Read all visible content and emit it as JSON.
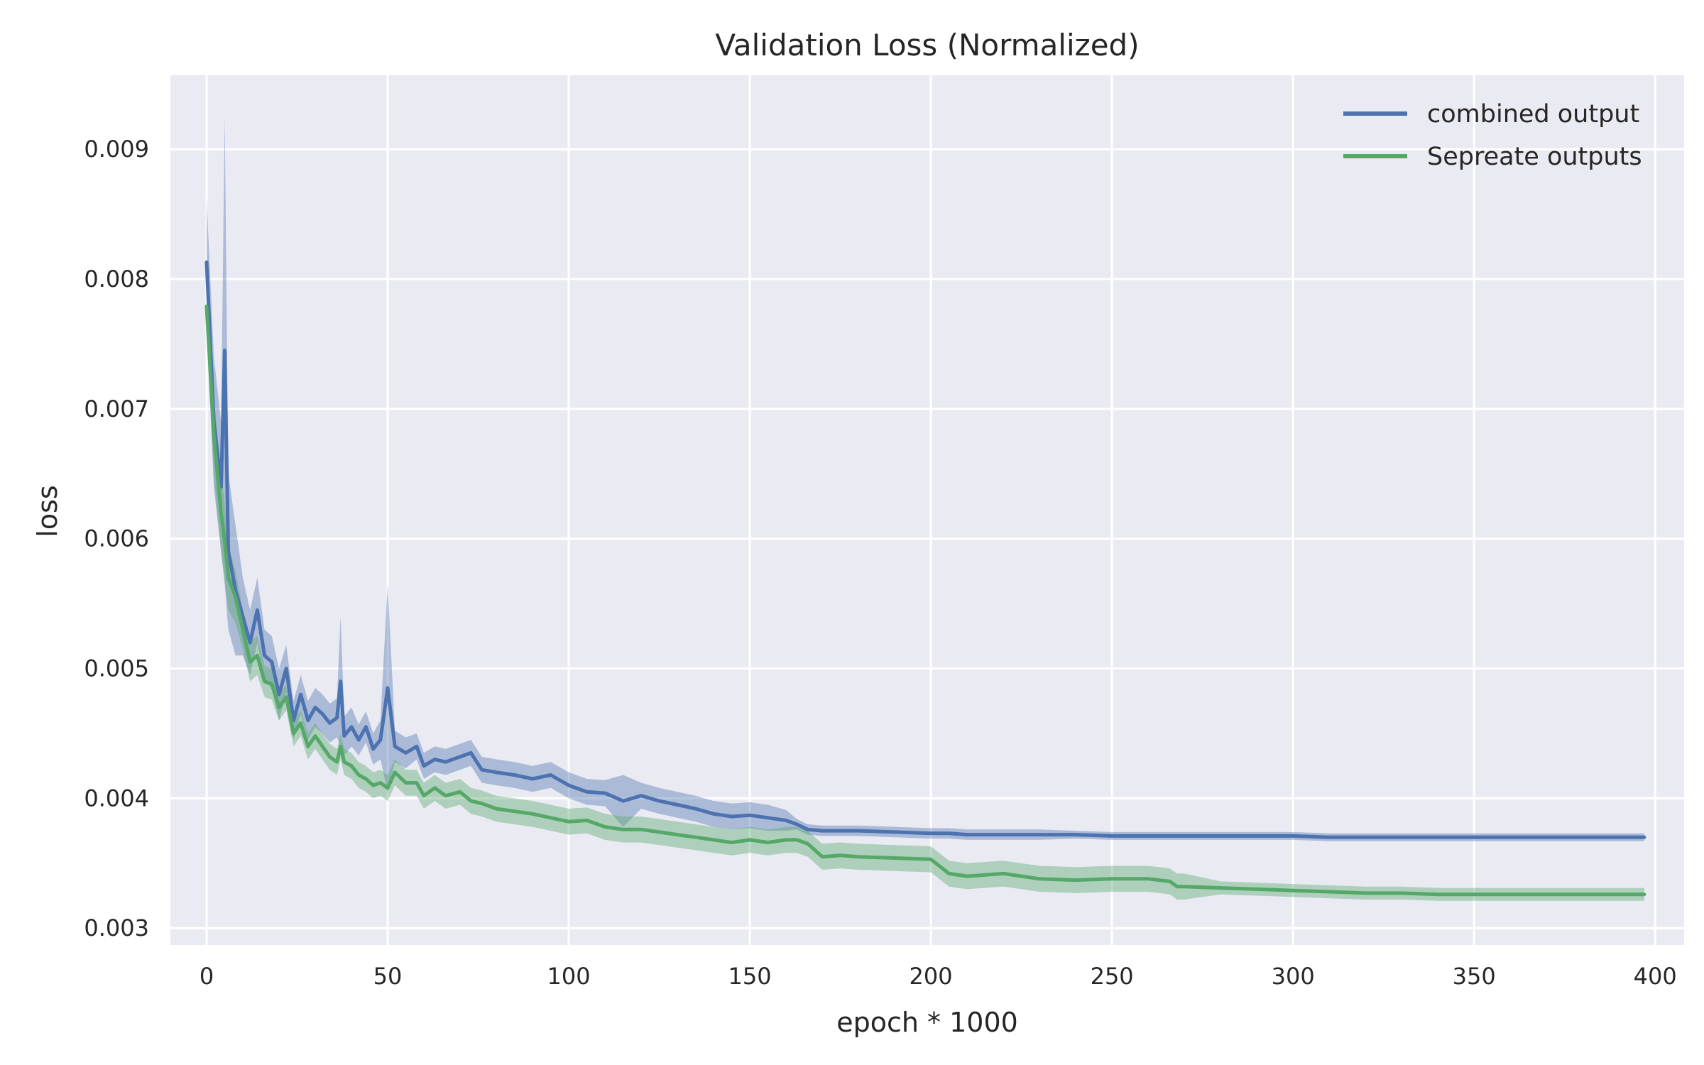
{
  "chart_data": {
    "type": "line",
    "title": "Validation Loss (Normalized)",
    "xlabel": "epoch * 1000",
    "ylabel": "loss",
    "xlim": [
      -10,
      408
    ],
    "ylim": [
      0.00287,
      0.00957
    ],
    "x_ticks": [
      0,
      50,
      100,
      150,
      200,
      250,
      300,
      350,
      400
    ],
    "x_tick_labels": [
      "0",
      "50",
      "100",
      "150",
      "200",
      "250",
      "300",
      "350",
      "400"
    ],
    "y_ticks": [
      0.003,
      0.004,
      0.005,
      0.006,
      0.007,
      0.008,
      0.009
    ],
    "y_tick_labels": [
      "0.003",
      "0.004",
      "0.005",
      "0.006",
      "0.007",
      "0.008",
      "0.009"
    ],
    "grid": true,
    "legend_position": "top-right",
    "confidence_band": true,
    "x": [
      0,
      2,
      4,
      5,
      6,
      8,
      10,
      12,
      14,
      16,
      18,
      20,
      22,
      24,
      26,
      28,
      30,
      32,
      34,
      36,
      37,
      38,
      40,
      42,
      44,
      46,
      48,
      50,
      52,
      55,
      58,
      60,
      63,
      66,
      70,
      73,
      76,
      80,
      85,
      90,
      95,
      100,
      105,
      110,
      115,
      120,
      125,
      130,
      135,
      140,
      145,
      150,
      155,
      160,
      163,
      166,
      170,
      175,
      180,
      190,
      200,
      205,
      210,
      220,
      230,
      240,
      250,
      260,
      266,
      268,
      270,
      280,
      290,
      300,
      310,
      320,
      330,
      340,
      350,
      360,
      370,
      380,
      390,
      397
    ],
    "series": [
      {
        "name": "combined output",
        "color": "#4c72b0",
        "values": [
          0.00813,
          0.0069,
          0.0064,
          0.00745,
          0.0059,
          0.0056,
          0.0054,
          0.0052,
          0.00545,
          0.0051,
          0.00505,
          0.0048,
          0.005,
          0.0046,
          0.0048,
          0.0046,
          0.0047,
          0.00465,
          0.00458,
          0.00462,
          0.0049,
          0.00448,
          0.00455,
          0.00445,
          0.00455,
          0.00438,
          0.00445,
          0.00485,
          0.0044,
          0.00435,
          0.0044,
          0.00425,
          0.0043,
          0.00428,
          0.00432,
          0.00435,
          0.00422,
          0.0042,
          0.00418,
          0.00415,
          0.00418,
          0.0041,
          0.00405,
          0.00404,
          0.00398,
          0.00402,
          0.00398,
          0.00395,
          0.00392,
          0.00388,
          0.00386,
          0.00387,
          0.00385,
          0.00383,
          0.0038,
          0.00376,
          0.00375,
          0.00375,
          0.00375,
          0.00374,
          0.00373,
          0.00373,
          0.00372,
          0.00372,
          0.00372,
          0.00372,
          0.00371,
          0.00371,
          0.00371,
          0.00371,
          0.00371,
          0.00371,
          0.00371,
          0.00371,
          0.0037,
          0.0037,
          0.0037,
          0.0037,
          0.0037,
          0.0037,
          0.0037,
          0.0037,
          0.0037,
          0.0037
        ],
        "band_halfwidth": [
          0.0005,
          0.0005,
          0.0005,
          0.0018,
          0.0006,
          0.0005,
          0.0003,
          0.00025,
          0.00025,
          0.0002,
          0.0002,
          0.0002,
          0.00018,
          0.00015,
          0.00015,
          0.00015,
          0.00015,
          0.00015,
          0.00015,
          0.00015,
          0.0005,
          0.00015,
          0.00015,
          0.00012,
          0.00012,
          0.00012,
          0.00015,
          0.0008,
          0.00012,
          0.00012,
          0.0001,
          0.0001,
          0.0001,
          0.0001,
          0.0001,
          0.0001,
          0.0001,
          0.0001,
          0.0001,
          0.0001,
          0.0001,
          0.0001,
          0.0001,
          0.0001,
          0.0002,
          0.0001,
          0.0001,
          0.0001,
          0.0001,
          0.0001,
          0.0001,
          0.0001,
          0.0001,
          8e-05,
          4e-05,
          4e-05,
          4e-05,
          4e-05,
          4e-05,
          4e-05,
          4e-05,
          4e-05,
          4e-05,
          4e-05,
          4e-05,
          3e-05,
          3e-05,
          3e-05,
          3e-05,
          3e-05,
          3e-05,
          3e-05,
          3e-05,
          3e-05,
          3e-05,
          3e-05,
          3e-05,
          3e-05,
          3e-05,
          3e-05,
          3e-05,
          3e-05,
          3e-05,
          3e-05
        ]
      },
      {
        "name": "Sepreate outputs",
        "color": "#55a868",
        "values": [
          0.00779,
          0.0068,
          0.0062,
          0.00598,
          0.0057,
          0.00555,
          0.0053,
          0.00505,
          0.0051,
          0.0049,
          0.00488,
          0.0047,
          0.00478,
          0.0045,
          0.00458,
          0.0044,
          0.00448,
          0.0044,
          0.00432,
          0.00428,
          0.0044,
          0.00428,
          0.00425,
          0.00418,
          0.00415,
          0.0041,
          0.00412,
          0.00408,
          0.0042,
          0.00412,
          0.00412,
          0.00402,
          0.00408,
          0.00402,
          0.00405,
          0.00398,
          0.00396,
          0.00392,
          0.0039,
          0.00388,
          0.00385,
          0.00382,
          0.00383,
          0.00378,
          0.00376,
          0.00376,
          0.00374,
          0.00372,
          0.0037,
          0.00368,
          0.00366,
          0.00368,
          0.00366,
          0.00368,
          0.00368,
          0.00365,
          0.00355,
          0.00356,
          0.00355,
          0.00354,
          0.00353,
          0.00342,
          0.0034,
          0.00342,
          0.00338,
          0.00337,
          0.00338,
          0.00338,
          0.00336,
          0.00332,
          0.00332,
          0.00331,
          0.0033,
          0.00329,
          0.00328,
          0.00327,
          0.00327,
          0.00326,
          0.00326,
          0.00326,
          0.00326,
          0.00326,
          0.00326,
          0.00326
        ],
        "band_halfwidth": [
          0.0002,
          0.0003,
          0.0003,
          0.0003,
          0.00025,
          0.0002,
          0.00015,
          0.00015,
          0.00015,
          0.00012,
          0.00012,
          0.0001,
          0.0001,
          0.0001,
          0.0001,
          0.0001,
          0.0001,
          0.0001,
          0.0001,
          0.0001,
          0.0001,
          0.0001,
          0.0001,
          0.0001,
          0.0001,
          0.0001,
          0.0001,
          0.0001,
          0.0001,
          0.0001,
          0.0001,
          0.0001,
          0.0001,
          0.0001,
          0.0001,
          0.0001,
          0.0001,
          0.0001,
          0.0001,
          0.0001,
          0.0001,
          0.0001,
          0.0001,
          0.0001,
          0.0001,
          0.0001,
          0.0001,
          0.0001,
          0.0001,
          0.0001,
          0.0001,
          0.0001,
          0.0001,
          0.0001,
          0.0001,
          0.0001,
          0.0001,
          0.0001,
          0.0001,
          0.0001,
          0.0001,
          0.0001,
          0.0001,
          0.0001,
          0.0001,
          0.0001,
          0.0001,
          0.0001,
          0.0001,
          0.0001,
          0.0001,
          5e-05,
          5e-05,
          5e-05,
          5e-05,
          5e-05,
          5e-05,
          5e-05,
          5e-05,
          5e-05,
          5e-05,
          5e-05,
          5e-05,
          5e-05
        ]
      }
    ]
  },
  "colors": {
    "plot_background": "#eaeaf2",
    "grid": "#ffffff",
    "combined_output": "#4c72b0",
    "sepreate_outputs": "#55a868"
  }
}
